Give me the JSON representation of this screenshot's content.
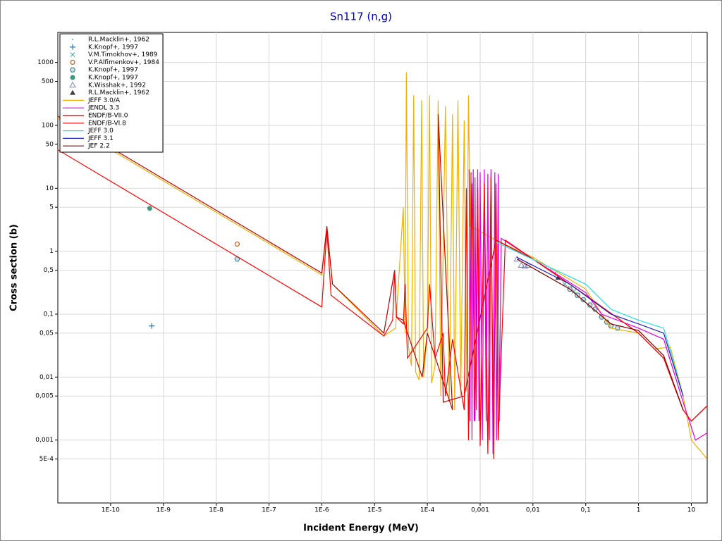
{
  "chart_data": {
    "type": "line",
    "title": "Sn117 (n,g)",
    "x_label": "Incident Energy (MeV)",
    "y_label": "Cross section (b)",
    "log_x": true,
    "log_y": true,
    "grid": true,
    "legend": "upper left",
    "xlim": [
      1e-11,
      20
    ],
    "ylim": [
      0.0001,
      3000
    ],
    "xticks": [
      {
        "value": 1e-10,
        "label": "1E-10"
      },
      {
        "value": 1e-09,
        "label": "1E-9"
      },
      {
        "value": 1e-08,
        "label": "1E-8"
      },
      {
        "value": 1e-07,
        "label": "1E-7"
      },
      {
        "value": 1e-06,
        "label": "1E-6"
      },
      {
        "value": 1e-05,
        "label": "1E-5"
      },
      {
        "value": 0.0001,
        "label": "1E-4"
      },
      {
        "value": 0.001,
        "label": "0,001"
      },
      {
        "value": 0.01,
        "label": "0,01"
      },
      {
        "value": 0.1,
        "label": "0,1"
      },
      1,
      10
    ],
    "yticks": [
      1000,
      500,
      100,
      50,
      10,
      5,
      1,
      {
        "value": 0.5,
        "label": "0,5"
      },
      {
        "value": 0.1,
        "label": "0,1"
      },
      {
        "value": 0.05,
        "label": "0,05"
      },
      {
        "value": 0.01,
        "label": "0,01"
      },
      {
        "value": 0.005,
        "label": "0,005"
      },
      {
        "value": 0.001,
        "label": "0,001"
      },
      {
        "value": 0.0005,
        "label": "5E-4"
      }
    ],
    "series": [
      {
        "name": "R.L.Macklin+, 1962",
        "type": "scatter",
        "marker": "dot",
        "color": "#40b0b0",
        "x": [
          0.008,
          0.01,
          0.012,
          0.015,
          0.018,
          0.022,
          0.027
        ],
        "values": [
          0.85,
          0.8,
          0.72,
          0.65,
          0.58,
          0.52,
          0.46
        ]
      },
      {
        "name": "K.Knopf+, 1997",
        "type": "scatter",
        "marker": "plus",
        "color": "#4080a0",
        "x": [
          6e-10
        ],
        "values": [
          0.065
        ]
      },
      {
        "name": "V.M.Timokhov+, 1989",
        "type": "scatter",
        "marker": "cross",
        "color": "#60b0b0",
        "x": [
          0.04,
          0.05,
          0.06,
          0.07
        ],
        "values": [
          0.3,
          0.26,
          0.23,
          0.2
        ]
      },
      {
        "name": "V.P.Alfimenkov+, 1984",
        "type": "scatter",
        "marker": "circle",
        "color": "#c06020",
        "x": [
          2.5e-08
        ],
        "values": [
          1.3
        ]
      },
      {
        "name": "K.Knopf+, 1997",
        "type": "scatter",
        "marker": "hexagon",
        "color": "#408080",
        "x": [
          2.5e-08,
          0.05,
          0.07,
          0.09,
          0.12,
          0.15,
          0.2,
          0.25,
          0.3,
          0.4
        ],
        "values": [
          0.75,
          0.25,
          0.2,
          0.17,
          0.14,
          0.12,
          0.09,
          0.075,
          0.065,
          0.06
        ]
      },
      {
        "name": "K.Knopf+, 1997",
        "type": "scatter",
        "marker": "filled-circle",
        "color": "#3a9a80",
        "x": [
          5.5e-10
        ],
        "values": [
          4.8
        ]
      },
      {
        "name": "K.Wisshak+, 1992",
        "type": "scatter",
        "marker": "triangle",
        "color": "#8080c0",
        "x": [
          0.005,
          0.006,
          0.007,
          0.008
        ],
        "values": [
          0.75,
          0.6,
          0.58,
          0.6
        ]
      },
      {
        "name": "R.L.Macklin+, 1962",
        "type": "scatter",
        "marker": "filled-triangle",
        "color": "#404040",
        "x": [
          0.03
        ],
        "values": [
          0.38
        ]
      },
      {
        "name": "JEFF 3.0/A",
        "color": "#f0b000",
        "x": [
          1e-11,
          1e-06,
          1.25e-06,
          1.6e-06,
          1.5e-05,
          2.5e-05,
          3.5e-05,
          3.8e-05,
          4e-05,
          4.4e-05,
          5e-05,
          5.5e-05,
          6e-05,
          7e-05,
          7.8e-05,
          8.5e-05,
          0.0001,
          0.00011,
          0.00012,
          0.00014,
          0.00016,
          0.00018,
          0.00022,
          0.00026,
          0.0003,
          0.00033,
          0.00038,
          0.00043,
          0.0005,
          0.00055,
          0.0006,
          0.00065,
          0.002,
          0.01,
          0.1,
          0.3,
          1,
          2,
          4,
          7,
          10,
          20
        ],
        "values": [
          130,
          0.42,
          2.2,
          0.3,
          0.045,
          0.06,
          5,
          0.05,
          700,
          0.03,
          0.015,
          300,
          0.012,
          0.009,
          250,
          0.01,
          0.05,
          300,
          0.008,
          0.015,
          250,
          0.005,
          200,
          0.004,
          150,
          0.003,
          250,
          0.005,
          120,
          0.006,
          300,
          2.5,
          1.5,
          0.8,
          0.25,
          0.06,
          0.05,
          0.028,
          0.03,
          0.005,
          0.001,
          0.0005
        ]
      },
      {
        "name": "JENDL 3.3",
        "color": "#e000e0",
        "x": [
          0.00062,
          0.00064,
          0.00067,
          0.0007,
          0.00074,
          0.00077,
          0.0008,
          0.00085,
          0.0009,
          0.00095,
          0.001,
          0.0011,
          0.0012,
          0.0013,
          0.0014,
          0.0015,
          0.0016,
          0.00175,
          0.0019,
          0.00205,
          0.0022,
          0.0023,
          0.0025,
          0.01,
          0.1,
          0.2,
          1,
          3,
          7,
          12,
          20
        ],
        "values": [
          20,
          0.002,
          18,
          0.001,
          20,
          0.002,
          15,
          0.003,
          20,
          0.002,
          18,
          0.001,
          20,
          0.002,
          17,
          0.001,
          20,
          0.0006,
          18,
          0.001,
          17,
          0.002,
          1.6,
          0.75,
          0.22,
          0.1,
          0.06,
          0.04,
          0.004,
          0.001,
          0.0013
        ]
      },
      {
        "name": "ENDF/B-VII.0",
        "color": "#c00000",
        "x": [
          1e-11,
          1e-06,
          1.25e-06,
          1.6e-06,
          1.5e-05,
          2.4e-05,
          2.6e-05,
          3.5e-05,
          8e-05,
          0.0001,
          0.0003,
          0.00016,
          0.0002,
          0.0005,
          0.002,
          0.01,
          0.1,
          1,
          3,
          7,
          10,
          20
        ],
        "values": [
          140,
          0.45,
          2.5,
          0.3,
          0.05,
          0.5,
          0.09,
          0.08,
          0.01,
          0.05,
          0.003,
          150,
          0.004,
          0.005,
          1.5,
          0.75,
          0.2,
          0.05,
          0.02,
          0.003,
          0.002,
          0.0035
        ]
      },
      {
        "name": "ENDF/B-VI.8",
        "color": "#ff0000",
        "x": [
          1e-11,
          1e-06,
          1.25e-06,
          1.5e-06,
          1.5e-05,
          2.2e-05,
          2.4e-05,
          2.6e-05,
          3.5e-05,
          3.8e-05,
          4.2e-05,
          0.0001,
          0.00011,
          0.00014,
          0.0002,
          0.00022,
          0.0003,
          0.0005,
          0.00055,
          0.0006,
          0.0007,
          0.0008,
          0.0009,
          0.001,
          0.0012,
          0.0014,
          0.0016,
          0.0018,
          0.002,
          0.0022,
          0.003,
          0.1,
          1,
          3,
          7,
          10,
          20
        ],
        "values": [
          41,
          0.13,
          2.2,
          0.2,
          0.045,
          0.08,
          0.5,
          0.09,
          0.07,
          0.3,
          0.02,
          0.06,
          0.3,
          0.02,
          0.05,
          0.005,
          0.04,
          0.003,
          10,
          0.001,
          12,
          0.002,
          10,
          0.0008,
          12,
          0.0006,
          15,
          0.0005,
          12,
          0.001,
          1.5,
          0.2,
          0.05,
          0.02,
          0.003,
          0.002,
          0.0035
        ]
      },
      {
        "name": "JEFF 3.0",
        "color": "#20e0e0",
        "x": [
          0.002,
          0.1,
          0.3,
          1,
          3,
          7
        ],
        "values": [
          1.4,
          0.3,
          0.12,
          0.08,
          0.06,
          0.005
        ]
      },
      {
        "name": "JEFF 3.1",
        "color": "#2020c0",
        "x": [
          0.005,
          0.05,
          0.3,
          1,
          3,
          7
        ],
        "values": [
          0.8,
          0.3,
          0.1,
          0.07,
          0.05,
          0.005
        ]
      },
      {
        "name": "JEF 2.2",
        "color": "#800000",
        "x": [
          0.005,
          0.05,
          0.3,
          1,
          3,
          7
        ],
        "values": [
          0.75,
          0.25,
          0.07,
          0.055,
          0.022,
          0.003
        ]
      }
    ]
  }
}
